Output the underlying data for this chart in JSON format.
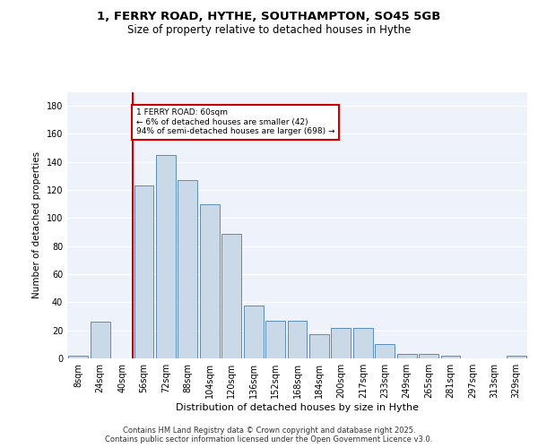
{
  "title_line1": "1, FERRY ROAD, HYTHE, SOUTHAMPTON, SO45 5GB",
  "title_line2": "Size of property relative to detached houses in Hythe",
  "xlabel": "Distribution of detached houses by size in Hythe",
  "ylabel": "Number of detached properties",
  "categories": [
    "8sqm",
    "24sqm",
    "40sqm",
    "56sqm",
    "72sqm",
    "88sqm",
    "104sqm",
    "120sqm",
    "136sqm",
    "152sqm",
    "168sqm",
    "184sqm",
    "200sqm",
    "217sqm",
    "233sqm",
    "249sqm",
    "265sqm",
    "281sqm",
    "297sqm",
    "313sqm",
    "329sqm"
  ],
  "values": [
    2,
    26,
    0,
    123,
    145,
    127,
    110,
    89,
    38,
    27,
    27,
    17,
    22,
    22,
    10,
    3,
    3,
    2,
    0,
    0,
    2
  ],
  "bar_color": "#c9d9e8",
  "bar_edge_color": "#5b8db8",
  "red_line_index": 3,
  "annotation_text": "1 FERRY ROAD: 60sqm\n← 6% of detached houses are smaller (42)\n94% of semi-detached houses are larger (698) →",
  "annotation_box_color": "#ffffff",
  "annotation_box_edge_color": "#cc0000",
  "red_line_color": "#cc0000",
  "bg_color": "#eef2fb",
  "footer_text": "Contains HM Land Registry data © Crown copyright and database right 2025.\nContains public sector information licensed under the Open Government Licence v3.0.",
  "ylim": [
    0,
    190
  ],
  "yticks": [
    0,
    20,
    40,
    60,
    80,
    100,
    120,
    140,
    160,
    180
  ]
}
